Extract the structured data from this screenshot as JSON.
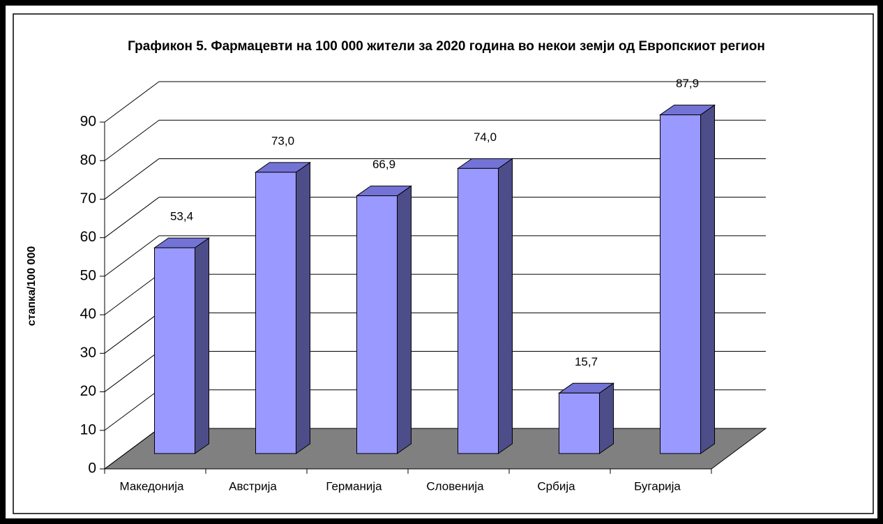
{
  "chart_data": {
    "type": "bar3d",
    "title": "Графикон 5. Фармацевти на 100 000 жители за 2020 година во некои земји од Европскиот регион",
    "ylabel": "стапка/100 000",
    "categories": [
      "Македонија",
      "Австрија",
      "Германија",
      "Словенија",
      "Србија",
      "Бугарија"
    ],
    "values": [
      53.4,
      73.0,
      66.9,
      74.0,
      15.7,
      87.9
    ],
    "value_labels": [
      "53,4",
      "73,0",
      "66,9",
      "74,0",
      "15,7",
      "87,9"
    ],
    "color": "#9999ff",
    "ylim": [
      0,
      90
    ],
    "yticks": [
      0,
      10,
      20,
      30,
      40,
      50,
      60,
      70,
      80,
      90
    ],
    "grid": true
  }
}
